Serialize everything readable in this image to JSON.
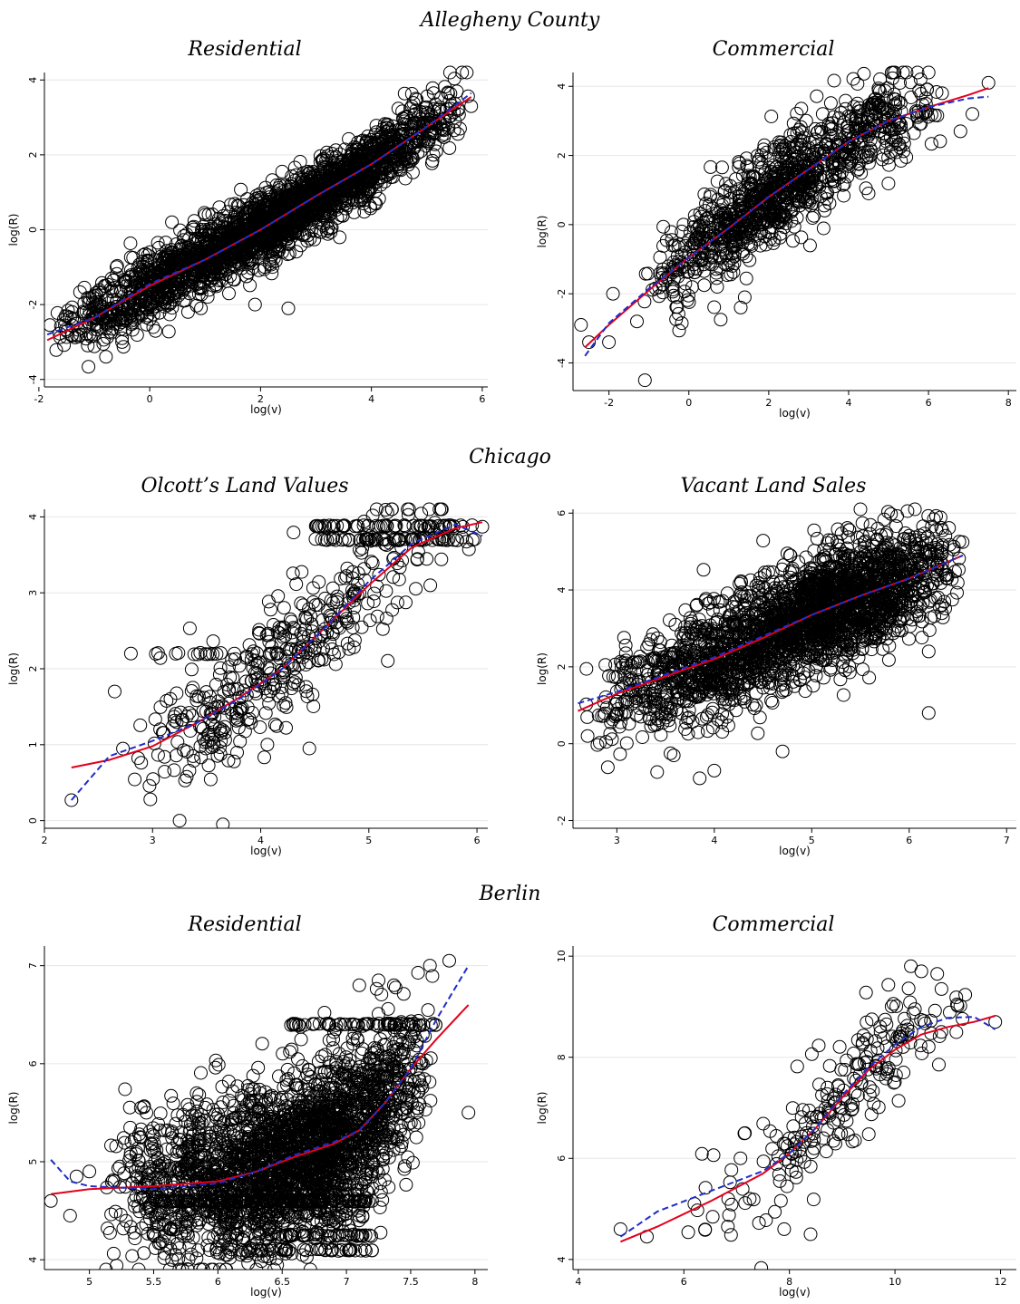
{
  "groups": [
    {
      "heading": "Allegheny County"
    },
    {
      "heading": "Chicago"
    },
    {
      "heading": "Berlin"
    }
  ],
  "colors": {
    "points": "#000000",
    "fit_solid": "#e3001b",
    "fit_dashed": "#1f2cc9",
    "grid": "#e6e6e6"
  },
  "chart_data": [
    {
      "type": "scatter",
      "title": "Residential",
      "xlabel": "log(v)",
      "ylabel": "log(R)",
      "xlim": [
        -1.9,
        6.1
      ],
      "ylim": [
        -4.2,
        4.2
      ],
      "xticks": [
        -2,
        0,
        2,
        4,
        6
      ],
      "yticks": [
        -4,
        -2,
        0,
        2,
        4
      ],
      "grid": "horizontal",
      "cloud": {
        "n": 2600,
        "x_range": [
          -1.8,
          5.9
        ],
        "x_mode": 2.3,
        "residual_sd": 0.45
      },
      "outliers": [
        [
          -1.8,
          -2.55
        ],
        [
          -1.4,
          -2.2
        ],
        [
          -1.55,
          -2.4
        ],
        [
          -0.5,
          -2.9
        ],
        [
          -0.5,
          -3.0
        ],
        [
          -0.6,
          -1.0
        ],
        [
          -0.3,
          -0.75
        ],
        [
          0.4,
          0.2
        ],
        [
          1.0,
          0.4
        ],
        [
          1.9,
          -2.0
        ],
        [
          2.5,
          -2.1
        ],
        [
          5.6,
          2.7
        ],
        [
          5.8,
          3.3
        ]
      ],
      "fits": [
        {
          "style": "solid",
          "x": [
            -1.85,
            -1,
            0,
            1,
            2,
            3,
            4,
            5,
            5.8
          ],
          "y": [
            -2.95,
            -2.35,
            -1.5,
            -0.8,
            0.0,
            0.9,
            1.75,
            2.75,
            3.55
          ]
        },
        {
          "style": "dashed",
          "x": [
            -1.85,
            -1,
            0,
            1,
            2,
            3,
            4,
            5,
            5.8
          ],
          "y": [
            -2.8,
            -2.35,
            -1.45,
            -0.8,
            0.0,
            0.9,
            1.75,
            2.75,
            3.65
          ]
        }
      ]
    },
    {
      "type": "scatter",
      "title": "Commercial",
      "xlabel": "log(v)",
      "ylabel": "log(R)",
      "xlim": [
        -2.9,
        8.2
      ],
      "ylim": [
        -4.8,
        4.4
      ],
      "xticks": [
        -2,
        0,
        2,
        4,
        6,
        8
      ],
      "yticks": [
        -4,
        -2,
        0,
        2,
        4
      ],
      "grid": "horizontal",
      "cloud": {
        "n": 1100,
        "x_range": [
          -1.2,
          6.5
        ],
        "x_mode": 2.0,
        "residual_sd": 0.7
      },
      "outliers": [
        [
          -2.7,
          -2.9
        ],
        [
          -2.5,
          -3.4
        ],
        [
          -2.0,
          -3.4
        ],
        [
          -1.9,
          -2.0
        ],
        [
          -1.1,
          -4.5
        ],
        [
          -1.3,
          -2.8
        ],
        [
          1.3,
          -2.4
        ],
        [
          1.4,
          -2.1
        ],
        [
          4.5,
          0.9
        ],
        [
          6.8,
          2.7
        ],
        [
          7.1,
          3.2
        ],
        [
          7.5,
          4.1
        ],
        [
          5.8,
          4.2
        ]
      ],
      "fits": [
        {
          "style": "solid",
          "x": [
            -2.6,
            -2,
            -1,
            0,
            1,
            2,
            3,
            4,
            5,
            6,
            7,
            7.5
          ],
          "y": [
            -3.55,
            -2.9,
            -1.9,
            -0.95,
            -0.1,
            0.8,
            1.6,
            2.4,
            3.0,
            3.4,
            3.75,
            3.95
          ]
        },
        {
          "style": "dashed",
          "x": [
            -2.6,
            -2,
            -1,
            0,
            1,
            2,
            3,
            4,
            5,
            6,
            7,
            7.5
          ],
          "y": [
            -3.8,
            -2.85,
            -1.85,
            -0.95,
            -0.1,
            0.8,
            1.6,
            2.4,
            3.0,
            3.4,
            3.65,
            3.7
          ]
        }
      ]
    },
    {
      "type": "scatter",
      "title": "Olcott’s Land Values",
      "xlabel": "log(v)",
      "ylabel": "log(R)",
      "xlim": [
        2.0,
        6.1
      ],
      "ylim": [
        -0.1,
        4.1
      ],
      "xticks": [
        2,
        3,
        4,
        5,
        6
      ],
      "yticks": [
        0,
        1,
        2,
        3,
        4
      ],
      "grid": "horizontal",
      "cloud": {
        "n": 420,
        "x_range": [
          2.7,
          6.0
        ],
        "x_mode": 4.0,
        "residual_sd": 0.45
      },
      "bands": [
        {
          "y": 3.88,
          "x_range": [
            4.5,
            6.0
          ],
          "n": 60
        },
        {
          "y": 3.7,
          "x_range": [
            4.5,
            6.0
          ],
          "n": 60
        },
        {
          "y": 2.2,
          "x_range": [
            3.0,
            4.2
          ],
          "n": 20
        }
      ],
      "outliers": [
        [
          2.25,
          0.27
        ],
        [
          3.25,
          0.0
        ],
        [
          3.65,
          -0.05
        ],
        [
          2.65,
          1.7
        ],
        [
          2.8,
          2.2
        ],
        [
          4.45,
          0.95
        ],
        [
          6.05,
          3.87
        ]
      ],
      "fits": [
        {
          "style": "solid",
          "x": [
            2.25,
            2.6,
            3.0,
            3.4,
            3.8,
            4.2,
            4.6,
            5.0,
            5.4,
            5.8,
            6.05
          ],
          "y": [
            0.7,
            0.8,
            0.98,
            1.28,
            1.62,
            2.0,
            2.55,
            3.1,
            3.6,
            3.85,
            3.93
          ]
        },
        {
          "style": "dashed",
          "x": [
            2.25,
            2.6,
            3.0,
            3.4,
            3.8,
            4.2,
            4.6,
            5.0,
            5.4,
            5.8,
            6.05
          ],
          "y": [
            0.27,
            0.85,
            1.05,
            1.28,
            1.6,
            2.0,
            2.55,
            3.15,
            3.65,
            3.9,
            3.75
          ]
        }
      ]
    },
    {
      "type": "scatter",
      "title": "Vacant Land Sales",
      "xlabel": "log(v)",
      "ylabel": "log(R)",
      "xlim": [
        2.55,
        7.1
      ],
      "ylim": [
        -2.2,
        6.1
      ],
      "xticks": [
        3,
        4,
        5,
        6,
        7
      ],
      "yticks": [
        -2,
        0,
        2,
        4,
        6
      ],
      "grid": "horizontal",
      "cloud": {
        "n": 2500,
        "x_range": [
          2.6,
          6.6
        ],
        "x_mode": 5.3,
        "residual_sd": 0.75
      },
      "outliers": [
        [
          3.85,
          -0.9
        ],
        [
          4.0,
          -0.7
        ],
        [
          3.55,
          -0.25
        ],
        [
          6.2,
          0.8
        ],
        [
          6.2,
          2.4
        ],
        [
          4.7,
          -0.2
        ],
        [
          2.7,
          0.2
        ]
      ],
      "fits": [
        {
          "style": "solid",
          "x": [
            2.6,
            3,
            3.5,
            4,
            4.5,
            5,
            5.5,
            6,
            6.55
          ],
          "y": [
            0.85,
            1.3,
            1.75,
            2.2,
            2.75,
            3.35,
            3.85,
            4.3,
            4.9
          ]
        },
        {
          "style": "dashed",
          "x": [
            2.6,
            3,
            3.5,
            4,
            4.5,
            5,
            5.5,
            6,
            6.55
          ],
          "y": [
            1.05,
            1.35,
            1.8,
            2.25,
            2.8,
            3.35,
            3.85,
            4.3,
            4.9
          ]
        }
      ]
    },
    {
      "type": "scatter",
      "title": "Residential",
      "xlabel": "log(v)",
      "ylabel": "log(R)",
      "xlim": [
        4.65,
        8.1
      ],
      "ylim": [
        3.9,
        7.2
      ],
      "xticks": [
        5,
        5.5,
        6,
        6.5,
        7,
        7.5,
        8
      ],
      "xtick_labels": [
        "5",
        "5.5",
        "6",
        "6.5",
        "7",
        "7.5",
        "8"
      ],
      "yticks": [
        4,
        5,
        6,
        7
      ],
      "grid": "horizontal",
      "cloud": {
        "n": 2600,
        "x_range": [
          5.1,
          7.7
        ],
        "x_mode": 6.8,
        "residual_sd": 0.42
      },
      "bands": [
        {
          "y": 4.6,
          "x_range": [
            5.5,
            7.2
          ],
          "n": 140
        },
        {
          "y": 4.25,
          "x_range": [
            6.5,
            7.2
          ],
          "n": 40
        },
        {
          "y": 4.1,
          "x_range": [
            6.2,
            7.2
          ],
          "n": 40
        },
        {
          "y": 6.4,
          "x_range": [
            6.5,
            7.7
          ],
          "n": 60
        }
      ],
      "outliers": [
        [
          4.7,
          4.6
        ],
        [
          4.85,
          4.45
        ],
        [
          4.9,
          4.85
        ],
        [
          7.65,
          7.0
        ],
        [
          7.8,
          7.05
        ],
        [
          7.95,
          5.5
        ],
        [
          7.1,
          6.8
        ],
        [
          7.25,
          6.85
        ],
        [
          5.0,
          4.9
        ],
        [
          5.4,
          5.55
        ]
      ],
      "fits": [
        {
          "style": "solid",
          "x": [
            4.7,
            5.0,
            5.5,
            6.0,
            6.3,
            6.6,
            6.9,
            7.1,
            7.3,
            7.5,
            7.7,
            7.95
          ],
          "y": [
            4.67,
            4.72,
            4.75,
            4.8,
            4.9,
            5.05,
            5.18,
            5.32,
            5.6,
            5.95,
            6.25,
            6.6
          ]
        },
        {
          "style": "dashed",
          "x": [
            4.7,
            4.85,
            5.0,
            5.5,
            6.0,
            6.3,
            6.6,
            6.9,
            7.1,
            7.3,
            7.5,
            7.7,
            7.95
          ],
          "y": [
            5.02,
            4.8,
            4.75,
            4.72,
            4.78,
            4.9,
            5.07,
            5.2,
            5.32,
            5.6,
            5.95,
            6.45,
            7.0
          ]
        }
      ]
    },
    {
      "type": "scatter",
      "title": "Commercial",
      "xlabel": "log(v)",
      "ylabel": "log(R)",
      "xlim": [
        3.9,
        12.3
      ],
      "ylim": [
        3.8,
        10.2
      ],
      "xticks": [
        4,
        6,
        8,
        10,
        12
      ],
      "yticks": [
        4,
        6,
        8,
        10
      ],
      "grid": "horizontal",
      "cloud": {
        "n": 230,
        "x_range": [
          6.0,
          11.5
        ],
        "x_mode": 9.3,
        "residual_sd": 0.55
      },
      "outliers": [
        [
          4.8,
          4.6
        ],
        [
          5.3,
          4.45
        ],
        [
          8.4,
          4.5
        ],
        [
          7.9,
          4.6
        ],
        [
          10.3,
          9.8
        ],
        [
          10.5,
          9.7
        ],
        [
          10.8,
          9.65
        ],
        [
          11.9,
          8.7
        ],
        [
          6.2,
          5.1
        ]
      ],
      "fits": [
        {
          "style": "solid",
          "x": [
            4.8,
            5.5,
            6.5,
            7.5,
            8.0,
            8.5,
            9.0,
            9.5,
            10.0,
            10.5,
            11.0,
            11.5,
            11.9
          ],
          "y": [
            4.35,
            4.65,
            5.15,
            5.7,
            6.1,
            6.6,
            7.2,
            7.75,
            8.15,
            8.45,
            8.6,
            8.7,
            8.82
          ]
        },
        {
          "style": "dashed",
          "x": [
            4.8,
            5.5,
            6.5,
            7.5,
            8.0,
            8.5,
            9.0,
            9.5,
            10.0,
            10.5,
            11.0,
            11.5,
            11.9
          ],
          "y": [
            4.45,
            4.95,
            5.35,
            5.75,
            6.1,
            6.6,
            7.25,
            7.8,
            8.25,
            8.6,
            8.78,
            8.8,
            8.55
          ]
        }
      ]
    }
  ]
}
